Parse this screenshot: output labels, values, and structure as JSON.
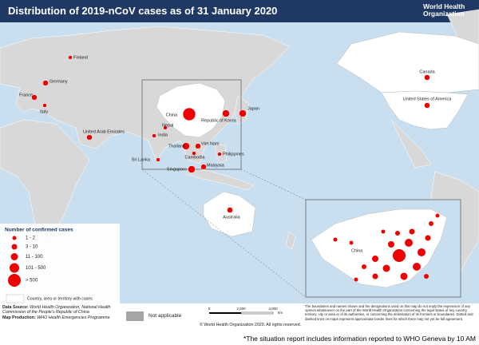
{
  "header": {
    "title": "Distribution of 2019-nCoV cases as of 31 January 2020",
    "org": "World Health Organization"
  },
  "places": [
    {
      "label": "Finland",
      "range": "1 - 2"
    },
    {
      "label": "Germany",
      "range": "3 - 10"
    },
    {
      "label": "France",
      "range": "3 - 10"
    },
    {
      "label": "Italy",
      "range": "1 - 2"
    },
    {
      "label": "United Arab Emirates",
      "range": "3 - 10"
    },
    {
      "label": "Nepal",
      "range": "1 - 2"
    },
    {
      "label": "India",
      "range": "1 - 2"
    },
    {
      "label": "Sri Lanka",
      "range": "1 - 2"
    },
    {
      "label": "China",
      "range": "> 500"
    },
    {
      "label": "Republic of Korea",
      "range": "11 - 100"
    },
    {
      "label": "Japan",
      "range": "11 - 100"
    },
    {
      "label": "Thailand",
      "range": "11 - 100"
    },
    {
      "label": "Viet Nam",
      "range": "3 - 10"
    },
    {
      "label": "Cambodia",
      "range": "1 - 2"
    },
    {
      "label": "Philippines",
      "range": "1 - 2"
    },
    {
      "label": "Singapore",
      "range": "11 - 100"
    },
    {
      "label": "Malaysia",
      "range": "3 - 10"
    },
    {
      "label": "Australia",
      "range": "3 - 10"
    },
    {
      "label": "Canada",
      "range": "3 - 10"
    },
    {
      "label": "United States of America",
      "range": "3 - 10"
    }
  ],
  "inset_label": "China",
  "legend": {
    "title": "Number of confirmed cases",
    "classes": [
      "1 - 2",
      "3 - 10",
      "11 - 100",
      "101 - 500",
      "> 500"
    ],
    "with_cases": "Country, area or territory with cases",
    "not_applicable": "Not applicable"
  },
  "footer": {
    "source_label": "Data Source:",
    "source": "World Health Organization, National Health Commission of the People's Republic of China",
    "production_label": "Map Production:",
    "production": "WHO Health Emergencies Programme",
    "scale": [
      "0",
      "2,000",
      "4,000"
    ],
    "scale_unit": "km",
    "copyright": "© World Health Organization 2020. All rights reserved.",
    "disclaimer": "The boundaries and names shown and the designations used on this map do not imply the expression of any opinion whatsoever on the part of the World Health Organization concerning the legal status of any country, territory, city or area or of its authorities, or concerning the delimitation of its frontiers or boundaries. Dotted and dashed lines on maps represent approximate border lines for which there may not yet be full agreement.",
    "note": "*The situation report includes information reported to WHO Geneva by 10 AM"
  }
}
